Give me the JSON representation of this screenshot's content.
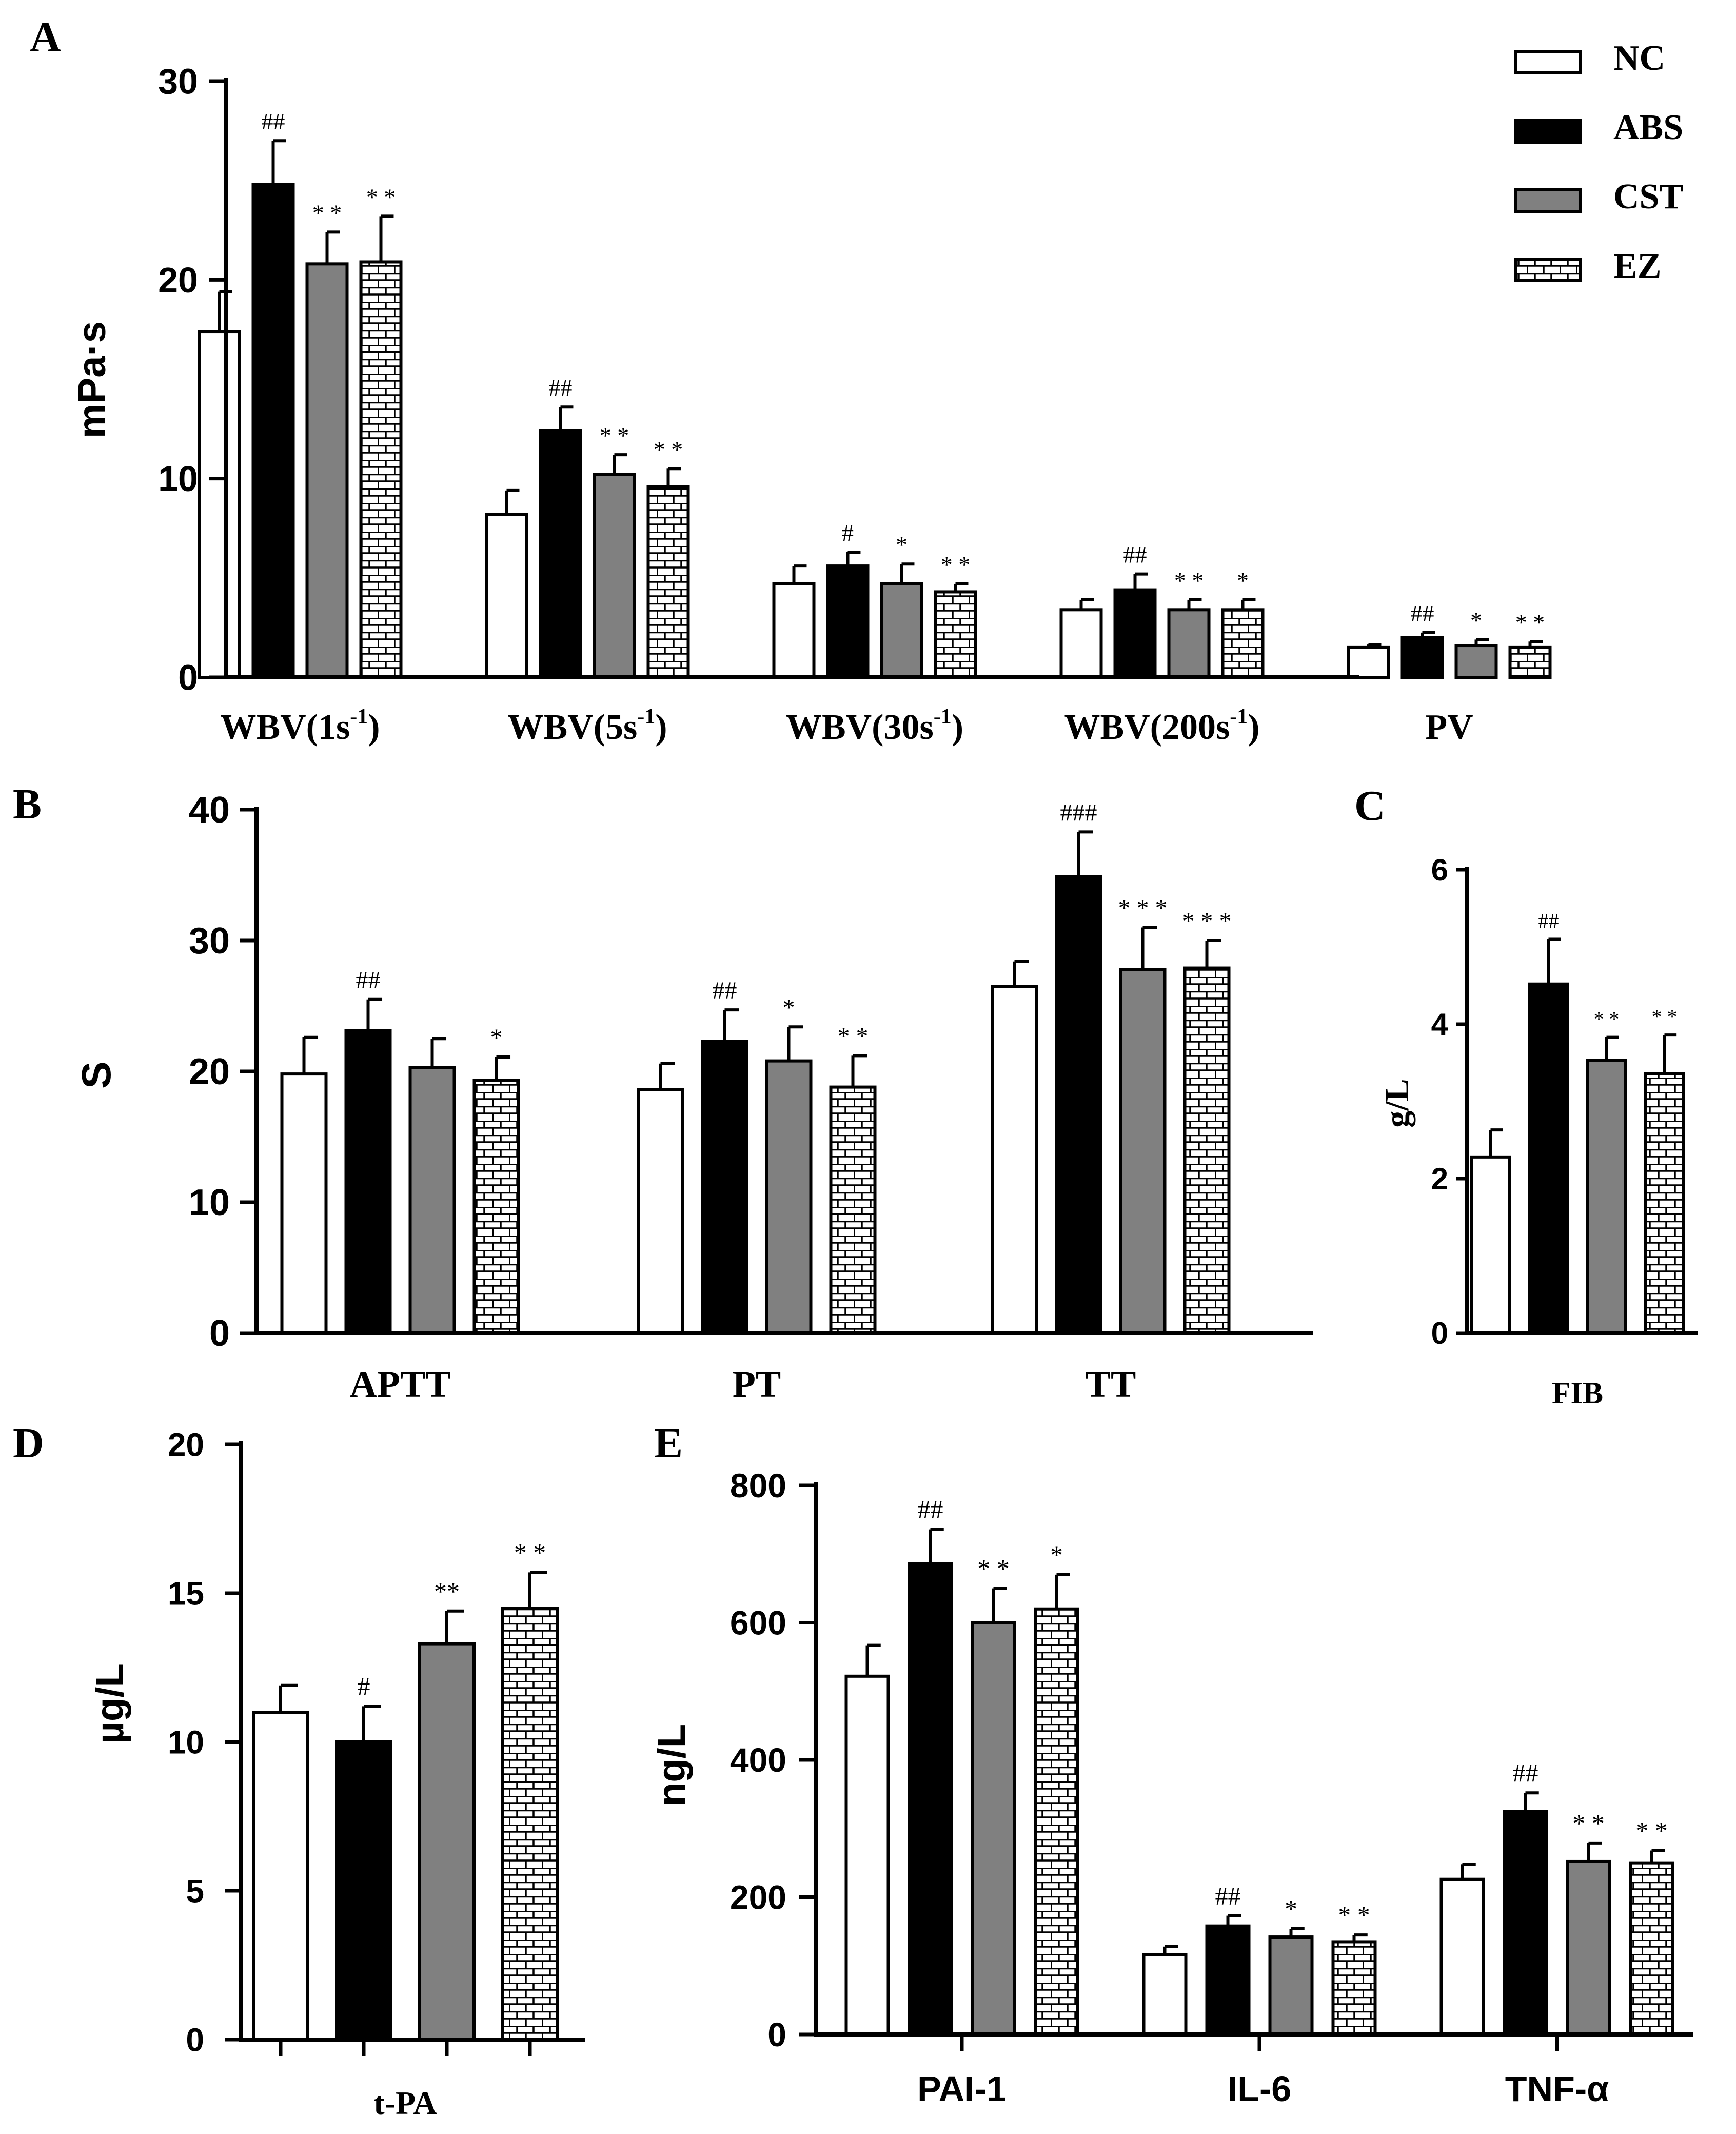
{
  "colors": {
    "NC": "#ffffff",
    "ABS": "#000000",
    "CST": "#808080",
    "EZ": "brick"
  },
  "legend": [
    {
      "key": "NC",
      "label": "NC"
    },
    {
      "key": "ABS",
      "label": "ABS"
    },
    {
      "key": "CST",
      "label": "CST"
    },
    {
      "key": "EZ",
      "label": "EZ"
    }
  ],
  "chart_data": [
    {
      "panel": "A",
      "type": "bar",
      "ylabel": "mPa·s",
      "ylim": [
        0,
        30
      ],
      "yticks": [
        "0",
        "10",
        "20",
        "30"
      ],
      "categories": [
        "WBV(1s-1)",
        "WBV(5s-1)",
        "WBV(30s-1)",
        "WBV(200s-1)",
        "PV"
      ],
      "series": [
        {
          "name": "NC",
          "values": [
            17.4,
            8.2,
            4.7,
            3.4,
            1.5
          ],
          "errors": [
            2.0,
            1.2,
            0.9,
            0.5,
            0.15
          ],
          "marks": [
            "",
            "",
            "",
            "",
            ""
          ]
        },
        {
          "name": "ABS",
          "values": [
            24.8,
            12.4,
            5.6,
            4.4,
            2.0
          ],
          "errors": [
            2.2,
            1.2,
            0.7,
            0.8,
            0.25
          ],
          "marks": [
            "##",
            "##",
            "#",
            "##",
            "##"
          ]
        },
        {
          "name": "CST",
          "values": [
            20.8,
            10.2,
            4.7,
            3.4,
            1.6
          ],
          "errors": [
            1.6,
            1.0,
            1.0,
            0.5,
            0.3
          ],
          "marks": [
            "* *",
            "* *",
            "*",
            "* *",
            "*"
          ]
        },
        {
          "name": "EZ",
          "values": [
            20.9,
            9.6,
            4.3,
            3.4,
            1.5
          ],
          "errors": [
            2.3,
            0.9,
            0.4,
            0.5,
            0.3
          ],
          "marks": [
            "* *",
            "* *",
            "* *",
            "*",
            "* *"
          ]
        }
      ]
    },
    {
      "panel": "B",
      "type": "bar",
      "ylabel": "S",
      "ylim": [
        0,
        40
      ],
      "yticks": [
        "0",
        "10",
        "20",
        "30",
        "40"
      ],
      "categories": [
        "APTT",
        "PT",
        "TT"
      ],
      "series": [
        {
          "name": "NC",
          "values": [
            19.8,
            18.6,
            26.5
          ],
          "errors": [
            2.8,
            2.0,
            1.9
          ],
          "marks": [
            "",
            "",
            ""
          ]
        },
        {
          "name": "ABS",
          "values": [
            23.1,
            22.3,
            34.9
          ],
          "errors": [
            2.4,
            2.4,
            3.4
          ],
          "marks": [
            "##",
            "##",
            "###"
          ]
        },
        {
          "name": "CST",
          "values": [
            20.3,
            20.8,
            27.8
          ],
          "errors": [
            2.2,
            2.6,
            3.2
          ],
          "marks": [
            "",
            "*",
            "* * *"
          ]
        },
        {
          "name": "EZ",
          "values": [
            19.3,
            18.8,
            27.9
          ],
          "errors": [
            1.8,
            2.4,
            2.1
          ],
          "marks": [
            "*",
            "* *",
            "* * *"
          ]
        }
      ]
    },
    {
      "panel": "C",
      "type": "bar",
      "ylabel": "g/L",
      "ylim": [
        0,
        6
      ],
      "yticks": [
        "0",
        "2",
        "4",
        "6"
      ],
      "categories": [
        "FIB"
      ],
      "series": [
        {
          "name": "NC",
          "values": [
            2.28
          ],
          "errors": [
            0.35
          ],
          "marks": [
            ""
          ]
        },
        {
          "name": "ABS",
          "values": [
            4.52
          ],
          "errors": [
            0.58
          ],
          "marks": [
            "##"
          ]
        },
        {
          "name": "CST",
          "values": [
            3.53
          ],
          "errors": [
            0.3
          ],
          "marks": [
            "* *"
          ]
        },
        {
          "name": "EZ",
          "values": [
            3.36
          ],
          "errors": [
            0.5
          ],
          "marks": [
            "* *"
          ]
        }
      ]
    },
    {
      "panel": "D",
      "type": "bar",
      "ylabel": "µg/L",
      "ylim": [
        0,
        20
      ],
      "yticks": [
        "0",
        "5",
        "10",
        "15",
        "20"
      ],
      "categories": [
        "t-PA"
      ],
      "series": [
        {
          "name": "NC",
          "values": [
            11.0
          ],
          "errors": [
            0.9
          ],
          "marks": [
            ""
          ]
        },
        {
          "name": "ABS",
          "values": [
            10.0
          ],
          "errors": [
            1.2
          ],
          "marks": [
            "#"
          ]
        },
        {
          "name": "CST",
          "values": [
            13.3
          ],
          "errors": [
            1.1
          ],
          "marks": [
            "**"
          ]
        },
        {
          "name": "EZ",
          "values": [
            14.5
          ],
          "errors": [
            1.2
          ],
          "marks": [
            "* *"
          ]
        }
      ]
    },
    {
      "panel": "E",
      "type": "bar",
      "ylabel": "ng/L",
      "ylim": [
        0,
        800
      ],
      "yticks": [
        "0",
        "200",
        "400",
        "600",
        "800"
      ],
      "categories": [
        "PAI-1",
        "IL-6",
        "TNF-α"
      ],
      "series": [
        {
          "name": "NC",
          "values": [
            522,
            116,
            226
          ],
          "errors": [
            45,
            12,
            22
          ],
          "marks": [
            "",
            "",
            ""
          ]
        },
        {
          "name": "ABS",
          "values": [
            686,
            158,
            325
          ],
          "errors": [
            50,
            15,
            27
          ],
          "marks": [
            "##",
            "##",
            "##"
          ]
        },
        {
          "name": "CST",
          "values": [
            600,
            142,
            252
          ],
          "errors": [
            50,
            12,
            27
          ],
          "marks": [
            "* *",
            "*",
            "* *"
          ]
        },
        {
          "name": "EZ",
          "values": [
            620,
            135,
            250
          ],
          "errors": [
            50,
            10,
            18
          ],
          "marks": [
            "*",
            "* *",
            "* *"
          ]
        }
      ]
    }
  ]
}
